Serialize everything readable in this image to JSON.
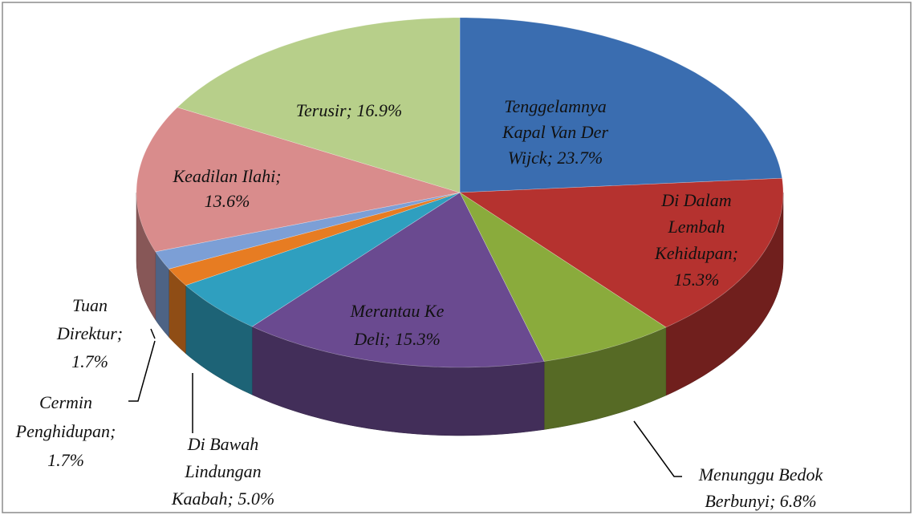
{
  "chart_data": {
    "type": "pie3d",
    "values": [
      23.7,
      15.3,
      6.8,
      15.3,
      5.0,
      1.7,
      1.7,
      13.6,
      16.9
    ],
    "value_labels": [
      [
        "Tenggelamnya",
        "Kapal Van Der",
        "Wijck; 23.7%"
      ],
      [
        "Di Dalam",
        "Lembah",
        "Kehidupan;",
        "15.3%"
      ],
      [
        "Menunggu Bedok",
        "Berbunyi; 6.8%"
      ],
      [
        "Merantau Ke",
        "Deli; 15.3%"
      ],
      [
        "Di Bawah",
        "Lindungan",
        "Kaabah; 5.0%"
      ],
      [
        "Cermin",
        "Penghidupan;",
        "1.7%"
      ],
      [
        "Tuan",
        "Direktur;",
        "1.7%"
      ],
      [
        "Keadilan Ilahi;",
        "13.6%"
      ],
      [
        "Terusir; 16.9%"
      ]
    ],
    "colors": [
      "#3a6db0",
      "#b5322f",
      "#8aab3c",
      "#6a4a90",
      "#2f9fbf",
      "#e77c22",
      "#7c9fd6",
      "#d98c8c",
      "#b7cf8a"
    ]
  }
}
